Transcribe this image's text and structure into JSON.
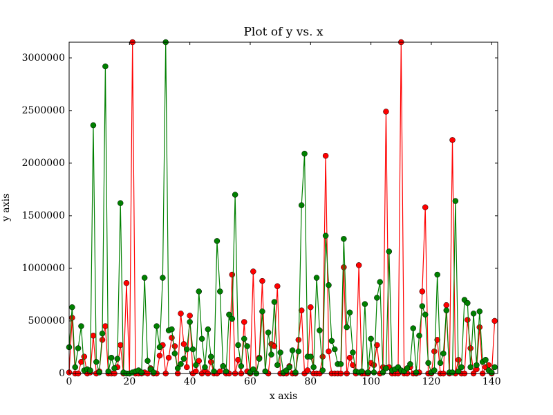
{
  "chart_data": {
    "type": "line",
    "title": "Plot of y vs. x",
    "xlabel": "x axis",
    "ylabel": "y axis",
    "x": [
      0,
      1,
      2,
      3,
      4,
      5,
      6,
      7,
      8,
      9,
      10,
      11,
      12,
      13,
      14,
      15,
      16,
      17,
      18,
      19,
      20,
      21,
      22,
      23,
      24,
      25,
      26,
      27,
      28,
      29,
      30,
      31,
      32,
      33,
      34,
      35,
      36,
      37,
      38,
      39,
      40,
      41,
      42,
      43,
      44,
      45,
      46,
      47,
      48,
      49,
      50,
      51,
      52,
      53,
      54,
      55,
      56,
      57,
      58,
      59,
      60,
      61,
      62,
      63,
      64,
      65,
      66,
      67,
      68,
      69,
      70,
      71,
      72,
      73,
      74,
      75,
      76,
      77,
      78,
      79,
      80,
      81,
      82,
      83,
      84,
      85,
      86,
      87,
      88,
      89,
      90,
      91,
      92,
      93,
      94,
      95,
      96,
      97,
      98,
      99,
      100,
      101,
      102,
      103,
      104,
      105,
      106,
      107,
      108,
      109,
      110,
      111,
      112,
      113,
      114,
      115,
      116,
      117,
      118,
      119,
      120,
      121,
      122,
      123,
      124,
      125,
      126,
      127,
      128,
      129,
      130,
      131,
      132,
      133,
      134,
      135,
      136,
      137,
      138,
      139,
      140,
      141
    ],
    "series": [
      {
        "color": "#ff0000",
        "values": [
          10000,
          530000,
          0,
          0,
          110000,
          160000,
          0,
          10000,
          360000,
          0,
          20000,
          320000,
          450000,
          0,
          0,
          0,
          60000,
          270000,
          0,
          860000,
          0,
          3150000,
          0,
          0,
          0,
          10000,
          0,
          50000,
          0,
          0,
          170000,
          270000,
          0,
          150000,
          340000,
          260000,
          0,
          570000,
          280000,
          60000,
          550000,
          0,
          20000,
          120000,
          0,
          30000,
          0,
          110000,
          0,
          0,
          20000,
          70000,
          0,
          0,
          940000,
          0,
          130000,
          0,
          490000,
          20000,
          0,
          970000,
          0,
          150000,
          880000,
          20000,
          0,
          280000,
          260000,
          830000,
          0,
          0,
          0,
          70000,
          0,
          0,
          320000,
          600000,
          0,
          30000,
          630000,
          0,
          0,
          0,
          160000,
          2070000,
          210000,
          0,
          0,
          0,
          0,
          1010000,
          0,
          150000,
          80000,
          0,
          1030000,
          0,
          0,
          0,
          100000,
          80000,
          270000,
          0,
          60000,
          2490000,
          60000,
          0,
          0,
          0,
          3150000,
          0,
          0,
          60000,
          0,
          0,
          10000,
          780000,
          1580000,
          0,
          0,
          210000,
          320000,
          0,
          0,
          650000,
          0,
          2220000,
          0,
          130000,
          0,
          0,
          510000,
          240000,
          0,
          40000,
          440000,
          0,
          60000,
          80000,
          0,
          500000
        ]
      },
      {
        "color": "#008000",
        "values": [
          250000,
          630000,
          60000,
          240000,
          450000,
          30000,
          40000,
          30000,
          2360000,
          110000,
          10000,
          380000,
          2920000,
          20000,
          150000,
          50000,
          140000,
          1620000,
          10000,
          0,
          0,
          10000,
          20000,
          30000,
          10000,
          910000,
          120000,
          40000,
          10000,
          450000,
          250000,
          910000,
          3150000,
          410000,
          420000,
          190000,
          50000,
          90000,
          140000,
          230000,
          490000,
          230000,
          80000,
          780000,
          330000,
          60000,
          420000,
          160000,
          20000,
          1260000,
          780000,
          70000,
          20000,
          560000,
          520000,
          1700000,
          270000,
          70000,
          330000,
          260000,
          10000,
          40000,
          0,
          140000,
          590000,
          20000,
          390000,
          180000,
          680000,
          80000,
          200000,
          10000,
          30000,
          60000,
          220000,
          10000,
          210000,
          1600000,
          2090000,
          160000,
          160000,
          60000,
          910000,
          410000,
          30000,
          1310000,
          840000,
          310000,
          230000,
          90000,
          90000,
          1280000,
          440000,
          580000,
          200000,
          20000,
          10000,
          20000,
          660000,
          10000,
          330000,
          10000,
          720000,
          870000,
          10000,
          50000,
          1160000,
          30000,
          40000,
          60000,
          30000,
          20000,
          50000,
          90000,
          430000,
          10000,
          360000,
          640000,
          560000,
          100000,
          10000,
          30000,
          940000,
          100000,
          190000,
          600000,
          10000,
          10000,
          1640000,
          20000,
          60000,
          700000,
          670000,
          60000,
          570000,
          80000,
          590000,
          110000,
          130000,
          30000,
          10000,
          60000
        ]
      }
    ],
    "xlim": [
      0,
      142
    ],
    "ylim": [
      0,
      3150000
    ],
    "xticks": [
      0,
      20,
      40,
      60,
      80,
      100,
      120,
      140
    ],
    "yticks": [
      0,
      500000,
      1000000,
      1500000,
      2000000,
      2500000,
      3000000
    ]
  }
}
